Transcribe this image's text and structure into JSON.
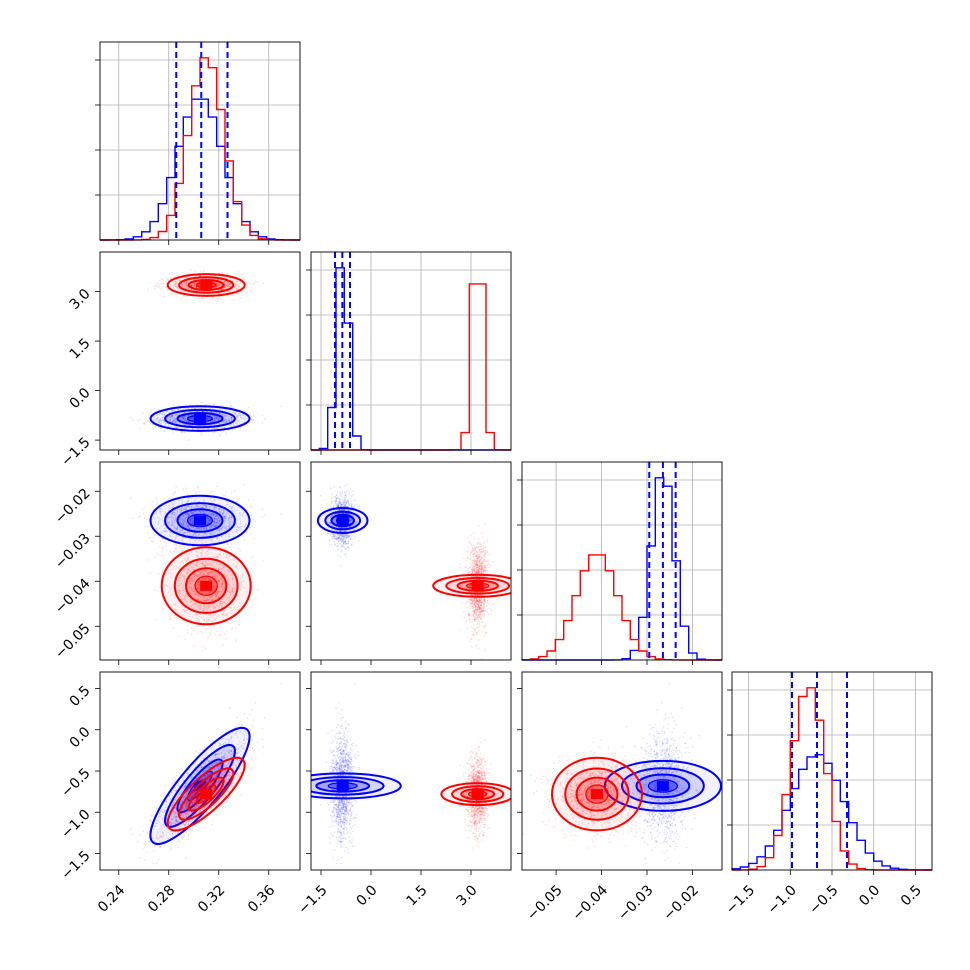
{
  "chart_data": {
    "type": "corner",
    "grid": true,
    "colors": {
      "series_a": "#0000ff",
      "series_b": "#ff0000",
      "grid": "#b0b0b0"
    },
    "parameters": [
      {
        "range": [
          0.225,
          0.385
        ],
        "ticks": [
          "0.24",
          "0.28",
          "0.32",
          "0.36"
        ],
        "tick_values": [
          0.24,
          0.28,
          0.32,
          0.36
        ]
      },
      {
        "range": [
          -1.8,
          4.2
        ],
        "ticks": [
          "−1.5",
          "0.0",
          "1.5",
          "3.0"
        ],
        "tick_values": [
          -1.5,
          0.0,
          1.5,
          3.0
        ]
      },
      {
        "range": [
          -0.0575,
          -0.0135
        ],
        "ticks": [
          "−0.05",
          "−0.04",
          "−0.03",
          "−0.02"
        ],
        "tick_values": [
          -0.05,
          -0.04,
          -0.03,
          -0.02
        ]
      },
      {
        "range": [
          -1.7,
          0.7
        ],
        "ticks": [
          "−1.5",
          "−1.0",
          "−0.5",
          "0.0",
          "0.5"
        ],
        "tick_values": [
          -1.5,
          -1.0,
          -0.5,
          0.0,
          0.5
        ]
      }
    ],
    "quantiles_blue": [
      [
        0.286,
        0.306,
        0.327
      ],
      [
        -1.08,
        -0.86,
        -0.63
      ],
      [
        -0.0295,
        -0.0265,
        -0.0237
      ],
      [
        -0.98,
        -0.68,
        -0.32
      ]
    ],
    "series": [
      {
        "color": "blue",
        "means": [
          0.305,
          -0.85,
          -0.0265,
          -0.68
        ],
        "sds": [
          0.018,
          0.17,
          0.0025,
          0.32
        ],
        "correlations": {
          "0-3": 0.85,
          "2-3": 0.0,
          "0-2": 0.0,
          "1-2": 0.0,
          "1-3": 0.0,
          "0-1": 0.0
        }
      },
      {
        "color": "red",
        "means": [
          0.31,
          3.2,
          -0.041,
          -0.78
        ],
        "sds": [
          0.014,
          0.15,
          0.0045,
          0.2
        ],
        "correlations": {
          "0-3": 0.8,
          "2-3": 0.0,
          "0-2": 0.0,
          "1-2": 0.0,
          "1-3": 0.0,
          "0-1": 0.0
        }
      }
    ]
  }
}
